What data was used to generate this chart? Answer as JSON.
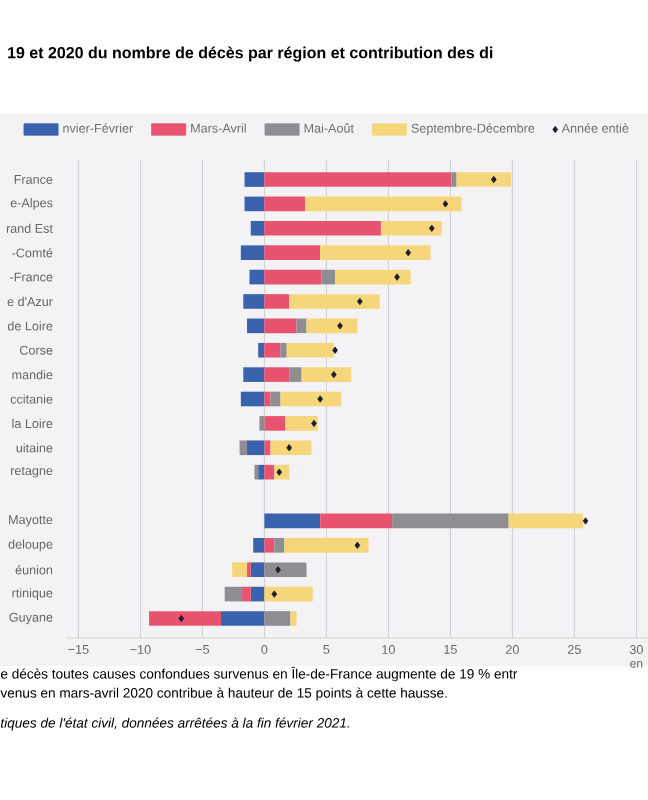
{
  "chart_data": {
    "type": "bar",
    "orientation": "horizontal",
    "stacked": true,
    "title": "19 et 2020 du nombre de décès par région et contribution des di",
    "categories": [
      "France",
      "e-Alpes",
      "rand Est",
      "-Comté",
      "-France",
      "e d'Azur",
      "de Loire",
      "Corse",
      "mandie",
      "ccitanie",
      "la Loire",
      "uitaine",
      "retagne",
      null,
      "Mayotte",
      "deloupe",
      "éunion",
      "rtinique",
      "Guyane"
    ],
    "series": [
      {
        "name": "nvier-Février",
        "color": "#3a62ad",
        "values": [
          -1.6,
          -1.6,
          -1.1,
          -1.9,
          -1.2,
          -1.7,
          -1.4,
          -0.5,
          -1.7,
          -1.9,
          0,
          -1.4,
          -0.5,
          null,
          4.5,
          -0.9,
          -1.1,
          -1.1,
          -3.5
        ]
      },
      {
        "name": "Mars-Avril",
        "color": "#e8546f",
        "values": [
          15.1,
          3.3,
          9.4,
          4.5,
          4.6,
          2.0,
          2.6,
          1.3,
          2.0,
          0.5,
          1.7,
          0.5,
          0.8,
          null,
          5.8,
          0.8,
          -0.3,
          -0.7,
          -5.8
        ]
      },
      {
        "name": "Mai-Août",
        "color": "#8e8e92",
        "values": [
          0.4,
          0,
          0,
          0,
          1.1,
          0,
          0.8,
          0.5,
          1.0,
          0.8,
          -0.4,
          -0.6,
          -0.3,
          null,
          9.4,
          0.8,
          3.4,
          -1.4,
          2.1
        ]
      },
      {
        "name": "Septembre-Décembre",
        "color": "#f6d67a",
        "values": [
          4.4,
          12.6,
          4.9,
          8.9,
          6.1,
          7.3,
          4.1,
          3.8,
          4.0,
          4.9,
          2.6,
          3.3,
          1.2,
          null,
          6.0,
          6.8,
          -1.2,
          3.9,
          0.5
        ]
      },
      {
        "name": "Année entiè",
        "type": "scatter",
        "marker": "diamond",
        "color": "#1c1c2c",
        "values": [
          18.5,
          14.6,
          13.5,
          11.6,
          10.7,
          7.7,
          6.1,
          5.7,
          5.6,
          4.5,
          4.0,
          2.0,
          1.2,
          null,
          25.9,
          7.5,
          1.1,
          0.8,
          -6.7
        ]
      }
    ],
    "xlim": [
      -16,
      31
    ],
    "xticks": [
      {
        "value": -15,
        "label": "−15"
      },
      {
        "value": -10,
        "label": "−10"
      },
      {
        "value": -5,
        "label": "−5"
      },
      0,
      5,
      10,
      15,
      20,
      25,
      30
    ],
    "xlabel": "en",
    "grid": "x",
    "legend": "top",
    "annotations": [
      "e décès toutes causes confondues survenus en Île-de-France augmente de 19 % entr",
      "venus en mars-avril 2020 contribue à hauteur de 15 points à cette hausse.",
      "tiques de l'état civil, données arrêtées à la fin février 2021."
    ]
  }
}
